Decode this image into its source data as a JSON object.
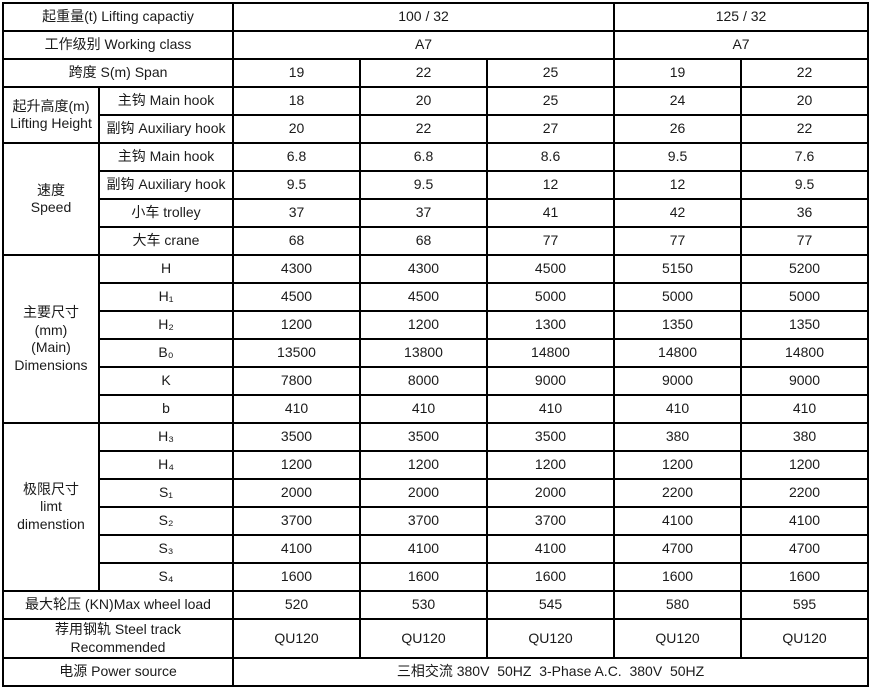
{
  "colors": {
    "background": "#ffffff",
    "border": "#000000",
    "text": "#1a1a1a"
  },
  "table": {
    "rows": [
      {
        "cells": [
          {
            "t": "起重量(t) Lifting capactiy",
            "cs": 2,
            "name": "row-label-lifting-capacity"
          },
          {
            "t": "100 / 32",
            "cs": 3,
            "name": "value-lifting-capacity-group1"
          },
          {
            "t": "125 / 32",
            "cs": 2,
            "name": "value-lifting-capacity-group2"
          }
        ]
      },
      {
        "cells": [
          {
            "t": "工作级别 Working class",
            "cs": 2,
            "name": "row-label-working-class"
          },
          {
            "t": "A7",
            "cs": 3,
            "name": "value-working-class-group1"
          },
          {
            "t": "A7",
            "cs": 2,
            "name": "value-working-class-group2"
          }
        ]
      },
      {
        "cells": [
          {
            "t": "跨度 S(m) Span",
            "cs": 2,
            "name": "row-label-span"
          },
          {
            "t": "19"
          },
          {
            "t": "22"
          },
          {
            "t": "25"
          },
          {
            "t": "19"
          },
          {
            "t": "22"
          }
        ]
      },
      {
        "cells": [
          {
            "t": "起升高度(m)\nLifting Height",
            "rs": 2,
            "name": "section-label-lifting-height"
          },
          {
            "t": "主钩 Main hook",
            "name": "sub-label-main-hook"
          },
          {
            "t": "18"
          },
          {
            "t": "20"
          },
          {
            "t": "25"
          },
          {
            "t": "24"
          },
          {
            "t": "20"
          }
        ]
      },
      {
        "cells": [
          {
            "t": "副钩 Auxiliary hook",
            "name": "sub-label-auxiliary-hook"
          },
          {
            "t": "20"
          },
          {
            "t": "22"
          },
          {
            "t": "27"
          },
          {
            "t": "26"
          },
          {
            "t": "22"
          }
        ]
      },
      {
        "cells": [
          {
            "t": "速度\nSpeed",
            "rs": 4,
            "name": "section-label-speed"
          },
          {
            "t": "主钩 Main hook",
            "name": "sub-label-main-hook"
          },
          {
            "t": "6.8"
          },
          {
            "t": "6.8"
          },
          {
            "t": "8.6"
          },
          {
            "t": "9.5"
          },
          {
            "t": "7.6"
          }
        ]
      },
      {
        "cells": [
          {
            "t": "副钩 Auxiliary hook",
            "name": "sub-label-auxiliary-hook"
          },
          {
            "t": "9.5"
          },
          {
            "t": "9.5"
          },
          {
            "t": "12"
          },
          {
            "t": "12"
          },
          {
            "t": "9.5"
          }
        ]
      },
      {
        "cells": [
          {
            "t": "小车 trolley",
            "name": "sub-label-trolley"
          },
          {
            "t": "37"
          },
          {
            "t": "37"
          },
          {
            "t": "41"
          },
          {
            "t": "42"
          },
          {
            "t": "36"
          }
        ]
      },
      {
        "cells": [
          {
            "t": "大车 crane",
            "name": "sub-label-crane"
          },
          {
            "t": "68"
          },
          {
            "t": "68"
          },
          {
            "t": "77"
          },
          {
            "t": "77"
          },
          {
            "t": "77"
          }
        ]
      },
      {
        "cells": [
          {
            "t": "主要尺寸\n(mm)\n(Main)\nDimensions",
            "rs": 6,
            "name": "section-label-main-dimensions"
          },
          {
            "t": "H",
            "name": "sub-label-H"
          },
          {
            "t": "4300"
          },
          {
            "t": "4300"
          },
          {
            "t": "4500"
          },
          {
            "t": "5150"
          },
          {
            "t": "5200"
          }
        ]
      },
      {
        "cells": [
          {
            "t": "H₁",
            "name": "sub-label-H1"
          },
          {
            "t": "4500"
          },
          {
            "t": "4500"
          },
          {
            "t": "5000"
          },
          {
            "t": "5000"
          },
          {
            "t": "5000"
          }
        ]
      },
      {
        "cells": [
          {
            "t": "H₂",
            "name": "sub-label-H2"
          },
          {
            "t": "1200"
          },
          {
            "t": "1200"
          },
          {
            "t": "1300"
          },
          {
            "t": "1350"
          },
          {
            "t": "1350"
          }
        ]
      },
      {
        "cells": [
          {
            "t": "B₀",
            "name": "sub-label-B0"
          },
          {
            "t": "13500"
          },
          {
            "t": "13800"
          },
          {
            "t": "14800"
          },
          {
            "t": "14800"
          },
          {
            "t": "14800"
          }
        ]
      },
      {
        "cells": [
          {
            "t": "K",
            "name": "sub-label-K"
          },
          {
            "t": "7800"
          },
          {
            "t": "8000"
          },
          {
            "t": "9000"
          },
          {
            "t": "9000"
          },
          {
            "t": "9000"
          }
        ]
      },
      {
        "cells": [
          {
            "t": "b",
            "name": "sub-label-b"
          },
          {
            "t": "410"
          },
          {
            "t": "410"
          },
          {
            "t": "410"
          },
          {
            "t": "410"
          },
          {
            "t": "410"
          }
        ]
      },
      {
        "cells": [
          {
            "t": "极限尺寸\nlimt\ndimenstion",
            "rs": 6,
            "name": "section-label-limit-dimension"
          },
          {
            "t": "H₃",
            "name": "sub-label-H3"
          },
          {
            "t": "3500"
          },
          {
            "t": "3500"
          },
          {
            "t": "3500"
          },
          {
            "t": "380"
          },
          {
            "t": "380"
          }
        ]
      },
      {
        "cells": [
          {
            "t": "H₄",
            "name": "sub-label-H4"
          },
          {
            "t": "1200"
          },
          {
            "t": "1200"
          },
          {
            "t": "1200"
          },
          {
            "t": "1200"
          },
          {
            "t": "1200"
          }
        ]
      },
      {
        "cells": [
          {
            "t": "S₁",
            "name": "sub-label-S1"
          },
          {
            "t": "2000"
          },
          {
            "t": "2000"
          },
          {
            "t": "2000"
          },
          {
            "t": "2200"
          },
          {
            "t": "2200"
          }
        ]
      },
      {
        "cells": [
          {
            "t": "S₂",
            "name": "sub-label-S2"
          },
          {
            "t": "3700"
          },
          {
            "t": "3700"
          },
          {
            "t": "3700"
          },
          {
            "t": "4100"
          },
          {
            "t": "4100"
          }
        ]
      },
      {
        "cells": [
          {
            "t": "S₃",
            "name": "sub-label-S3"
          },
          {
            "t": "4100"
          },
          {
            "t": "4100"
          },
          {
            "t": "4100"
          },
          {
            "t": "4700"
          },
          {
            "t": "4700"
          }
        ]
      },
      {
        "cells": [
          {
            "t": "S₄",
            "name": "sub-label-S4"
          },
          {
            "t": "1600"
          },
          {
            "t": "1600"
          },
          {
            "t": "1600"
          },
          {
            "t": "1600"
          },
          {
            "t": "1600"
          }
        ]
      },
      {
        "cells": [
          {
            "t": "最大轮压 (KN)Max wheel load",
            "cs": 2,
            "name": "row-label-max-wheel-load"
          },
          {
            "t": "520"
          },
          {
            "t": "530"
          },
          {
            "t": "545"
          },
          {
            "t": "580"
          },
          {
            "t": "595"
          }
        ]
      },
      {
        "cells": [
          {
            "t": "荐用钢轨 Steel track\nRecommended",
            "cs": 2,
            "name": "row-label-steel-track"
          },
          {
            "t": "QU120"
          },
          {
            "t": "QU120"
          },
          {
            "t": "QU120"
          },
          {
            "t": "QU120"
          },
          {
            "t": "QU120"
          }
        ]
      },
      {
        "cells": [
          {
            "t": "电源 Power source",
            "cs": 2,
            "name": "row-label-power-source"
          },
          {
            "t": "三相交流 380V  50HZ  3-Phase A.C.  380V  50HZ",
            "cs": 5,
            "name": "value-power-source"
          }
        ]
      }
    ]
  }
}
